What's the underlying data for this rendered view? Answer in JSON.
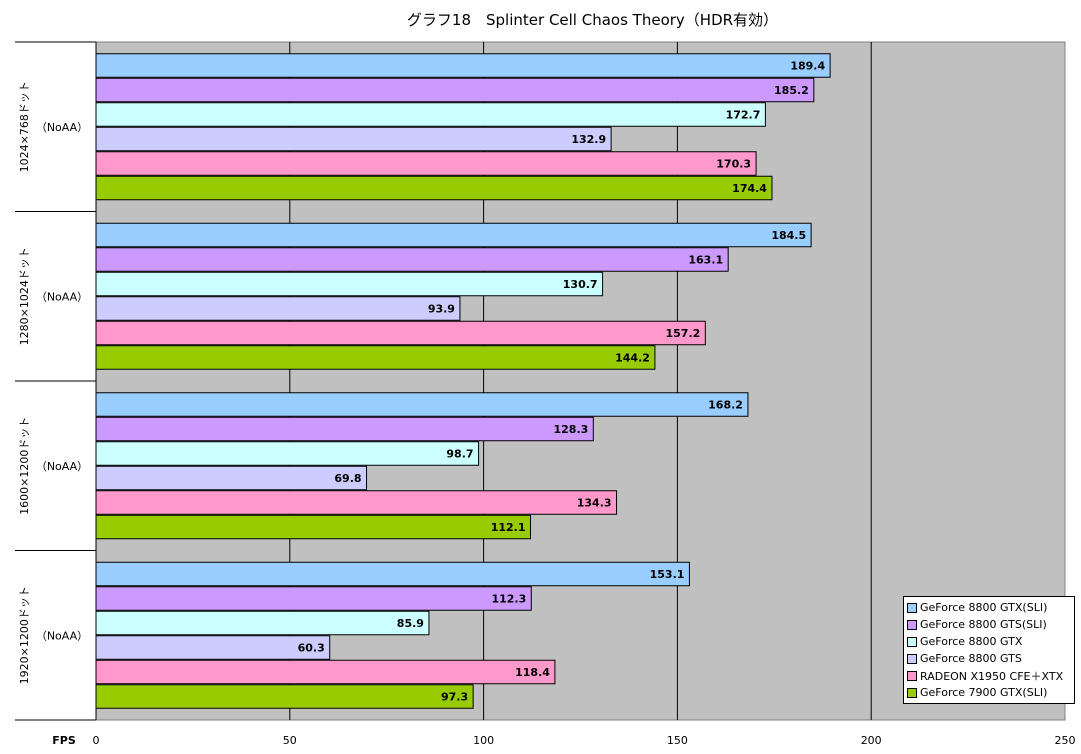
{
  "chart_data": {
    "type": "bar",
    "orientation": "horizontal",
    "title": "グラフ18　Splinter Cell Chaos Theory（HDR有効）",
    "xlabel": "FPS",
    "xlim": [
      0,
      250
    ],
    "xticks": [
      "0",
      "50",
      "100",
      "150",
      "200",
      "250"
    ],
    "grid": true,
    "legend_position": "bottom-right",
    "groups": [
      {
        "label": "1024×768ドット",
        "sublabel": "（NoAA）"
      },
      {
        "label": "1280×1024ドット",
        "sublabel": "（NoAA）"
      },
      {
        "label": "1600×1200ドット",
        "sublabel": "（NoAA）"
      },
      {
        "label": "1920×1200ドット",
        "sublabel": "（NoAA）"
      }
    ],
    "series": [
      {
        "name": "GeForce 8800 GTX(SLI)",
        "color": "#99CCFF",
        "values": [
          189.4,
          184.5,
          168.2,
          153.1
        ]
      },
      {
        "name": "GeForce 8800 GTS(SLI)",
        "color": "#CC99FF",
        "values": [
          185.2,
          163.1,
          128.3,
          112.3
        ]
      },
      {
        "name": "GeForce 8800 GTX",
        "color": "#CCFFFF",
        "values": [
          172.7,
          130.7,
          98.7,
          85.9
        ]
      },
      {
        "name": "GeForce 8800 GTS",
        "color": "#CCCCFF",
        "values": [
          132.9,
          93.9,
          69.8,
          60.3
        ]
      },
      {
        "name": "RADEON X1950 CFE＋XTX",
        "color": "#FF99CC",
        "values": [
          170.3,
          157.2,
          134.3,
          118.4
        ]
      },
      {
        "name": "GeForce 7900 GTX(SLI)",
        "color": "#99CC00",
        "values": [
          174.4,
          144.2,
          112.1,
          97.3
        ]
      }
    ],
    "plot_background": "#C0C0C0"
  }
}
